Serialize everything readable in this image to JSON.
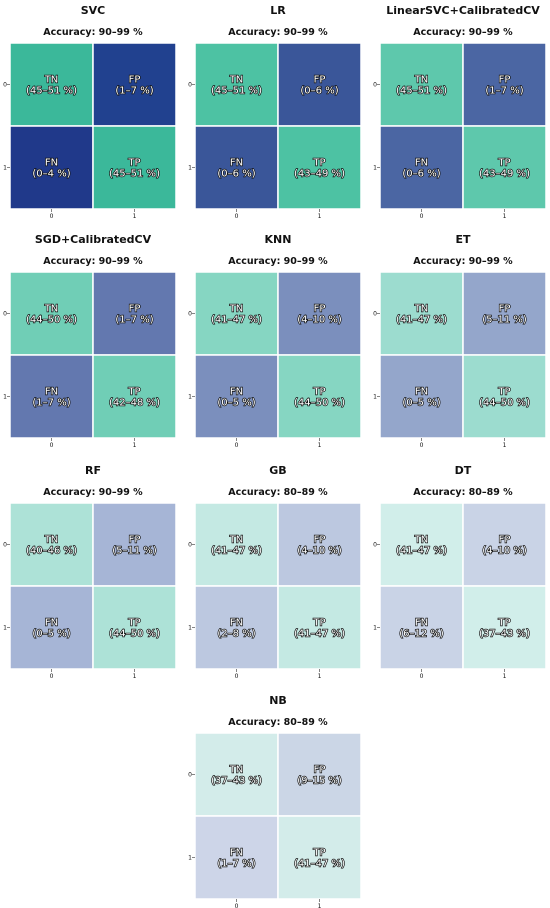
{
  "chart_data": [
    {
      "type": "heatmap",
      "title": "SVC",
      "subtitle": "Accuracy: 90–99 %",
      "x_ticks": [
        "0",
        "1"
      ],
      "y_ticks": [
        "0",
        "1"
      ],
      "cells": [
        {
          "row": 0,
          "col": 0,
          "label": "TN",
          "range": "(45–51 %)",
          "color": "#3bb89a"
        },
        {
          "row": 0,
          "col": 1,
          "label": "FP",
          "range": "(1–7 %)",
          "color": "#21418f"
        },
        {
          "row": 1,
          "col": 0,
          "label": "FN",
          "range": "(0–4 %)",
          "color": "#20398a"
        },
        {
          "row": 1,
          "col": 1,
          "label": "TP",
          "range": "(45–51 %)",
          "color": "#3bb89a"
        }
      ]
    },
    {
      "type": "heatmap",
      "title": "LR",
      "subtitle": "Accuracy: 90–99 %",
      "x_ticks": [
        "0",
        "1"
      ],
      "y_ticks": [
        "0",
        "1"
      ],
      "cells": [
        {
          "row": 0,
          "col": 0,
          "label": "TN",
          "range": "(45–51 %)",
          "color": "#4dc2a3"
        },
        {
          "row": 0,
          "col": 1,
          "label": "FP",
          "range": "(0–6 %)",
          "color": "#3a5699"
        },
        {
          "row": 1,
          "col": 0,
          "label": "FN",
          "range": "(0–6 %)",
          "color": "#3a5699"
        },
        {
          "row": 1,
          "col": 1,
          "label": "TP",
          "range": "(43–49 %)",
          "color": "#4dc2a3"
        }
      ]
    },
    {
      "type": "heatmap",
      "title": "LinearSVC+CalibratedCV",
      "subtitle": "Accuracy: 90–99 %",
      "x_ticks": [
        "0",
        "1"
      ],
      "y_ticks": [
        "0",
        "1"
      ],
      "cells": [
        {
          "row": 0,
          "col": 0,
          "label": "TN",
          "range": "(45–51 %)",
          "color": "#5ec8ac"
        },
        {
          "row": 0,
          "col": 1,
          "label": "FP",
          "range": "(1–7 %)",
          "color": "#4b66a3"
        },
        {
          "row": 1,
          "col": 0,
          "label": "FN",
          "range": "(0–6 %)",
          "color": "#4b66a3"
        },
        {
          "row": 1,
          "col": 1,
          "label": "TP",
          "range": "(43–49 %)",
          "color": "#5ec8ac"
        }
      ]
    },
    {
      "type": "heatmap",
      "title": "SGD+CalibratedCV",
      "subtitle": "Accuracy: 90–99 %",
      "x_ticks": [
        "0",
        "1"
      ],
      "y_ticks": [
        "0",
        "1"
      ],
      "cells": [
        {
          "row": 0,
          "col": 0,
          "label": "TN",
          "range": "(44–50 %)",
          "color": "#70ceb6"
        },
        {
          "row": 0,
          "col": 1,
          "label": "FP",
          "range": "(1–7 %)",
          "color": "#6378af"
        },
        {
          "row": 1,
          "col": 0,
          "label": "FN",
          "range": "(1–7 %)",
          "color": "#6378af"
        },
        {
          "row": 1,
          "col": 1,
          "label": "TP",
          "range": "(42–48 %)",
          "color": "#70ceb6"
        }
      ]
    },
    {
      "type": "heatmap",
      "title": "KNN",
      "subtitle": "Accuracy: 90–99 %",
      "x_ticks": [
        "0",
        "1"
      ],
      "y_ticks": [
        "0",
        "1"
      ],
      "cells": [
        {
          "row": 0,
          "col": 0,
          "label": "TN",
          "range": "(41–47 %)",
          "color": "#86d6c2"
        },
        {
          "row": 0,
          "col": 1,
          "label": "FP",
          "range": "(4–10 %)",
          "color": "#7b8fbd"
        },
        {
          "row": 1,
          "col": 0,
          "label": "FN",
          "range": "(0–5 %)",
          "color": "#7b8fbd"
        },
        {
          "row": 1,
          "col": 1,
          "label": "TP",
          "range": "(44–50 %)",
          "color": "#86d6c2"
        }
      ]
    },
    {
      "type": "heatmap",
      "title": "ET",
      "subtitle": "Accuracy: 90–99 %",
      "x_ticks": [
        "0",
        "1"
      ],
      "y_ticks": [
        "0",
        "1"
      ],
      "cells": [
        {
          "row": 0,
          "col": 0,
          "label": "TN",
          "range": "(41–47 %)",
          "color": "#9cdccf"
        },
        {
          "row": 0,
          "col": 1,
          "label": "FP",
          "range": "(5–11 %)",
          "color": "#94a6cb"
        },
        {
          "row": 1,
          "col": 0,
          "label": "FN",
          "range": "(0–5 %)",
          "color": "#94a6cb"
        },
        {
          "row": 1,
          "col": 1,
          "label": "TP",
          "range": "(44–50 %)",
          "color": "#9cdccf"
        }
      ]
    },
    {
      "type": "heatmap",
      "title": "RF",
      "subtitle": "Accuracy: 90–99 %",
      "x_ticks": [
        "0",
        "1"
      ],
      "y_ticks": [
        "0",
        "1"
      ],
      "cells": [
        {
          "row": 0,
          "col": 0,
          "label": "TN",
          "range": "(40–46 %)",
          "color": "#ade2d7"
        },
        {
          "row": 0,
          "col": 1,
          "label": "FP",
          "range": "(5–11 %)",
          "color": "#a6b5d6"
        },
        {
          "row": 1,
          "col": 0,
          "label": "FN",
          "range": "(0–5 %)",
          "color": "#a6b5d6"
        },
        {
          "row": 1,
          "col": 1,
          "label": "TP",
          "range": "(44–50 %)",
          "color": "#ade2d7"
        }
      ]
    },
    {
      "type": "heatmap",
      "title": "GB",
      "subtitle": "Accuracy: 80–89 %",
      "x_ticks": [
        "0",
        "1"
      ],
      "y_ticks": [
        "0",
        "1"
      ],
      "cells": [
        {
          "row": 0,
          "col": 0,
          "label": "TN",
          "range": "(41–47 %)",
          "color": "#c4e9e3"
        },
        {
          "row": 0,
          "col": 1,
          "label": "FP",
          "range": "(4–10 %)",
          "color": "#bcc8e0"
        },
        {
          "row": 1,
          "col": 0,
          "label": "FN",
          "range": "(2–8 %)",
          "color": "#bcc8e0"
        },
        {
          "row": 1,
          "col": 1,
          "label": "TP",
          "range": "(41–47 %)",
          "color": "#c4e9e3"
        }
      ]
    },
    {
      "type": "heatmap",
      "title": "DT",
      "subtitle": "Accuracy: 80–89 %",
      "x_ticks": [
        "0",
        "1"
      ],
      "y_ticks": [
        "0",
        "1"
      ],
      "cells": [
        {
          "row": 0,
          "col": 0,
          "label": "TN",
          "range": "(41–47 %)",
          "color": "#d1eeea"
        },
        {
          "row": 0,
          "col": 1,
          "label": "FP",
          "range": "(4–10 %)",
          "color": "#c9d3e6"
        },
        {
          "row": 1,
          "col": 0,
          "label": "FN",
          "range": "(6–12 %)",
          "color": "#c9d3e6"
        },
        {
          "row": 1,
          "col": 1,
          "label": "TP",
          "range": "(37–43 %)",
          "color": "#d1eeea"
        }
      ]
    },
    {
      "type": "heatmap",
      "title": "NB",
      "subtitle": "Accuracy: 80–89 %",
      "x_ticks": [
        "0",
        "1"
      ],
      "y_ticks": [
        "0",
        "1"
      ],
      "cells": [
        {
          "row": 0,
          "col": 0,
          "label": "TN",
          "range": "(37–43 %)",
          "color": "#d3ecea"
        },
        {
          "row": 0,
          "col": 1,
          "label": "FP",
          "range": "(9–15 %)",
          "color": "#cbd6e6"
        },
        {
          "row": 1,
          "col": 0,
          "label": "FN",
          "range": "(1–7 %)",
          "color": "#cdd5e8"
        },
        {
          "row": 1,
          "col": 1,
          "label": "TP",
          "range": "(41–47 %)",
          "color": "#d3ecea"
        }
      ]
    }
  ]
}
